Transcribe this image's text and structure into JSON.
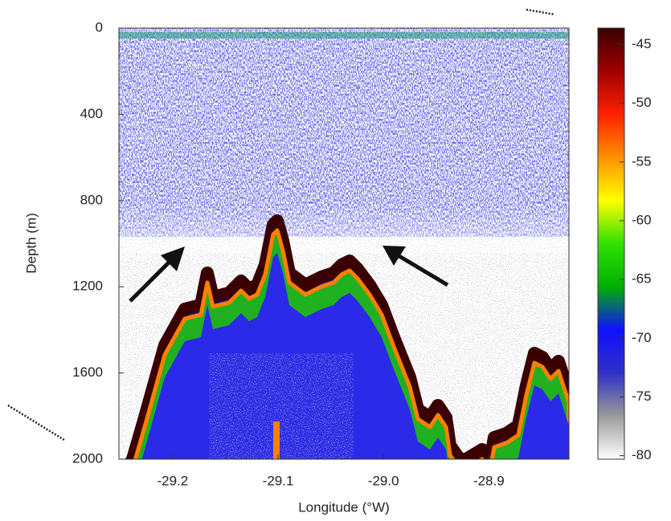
{
  "chart_data": {
    "type": "echogram",
    "xlabel": "Longitude (°W)",
    "ylabel": "Depth (m)",
    "xlim": [
      -29.251,
      -28.824
    ],
    "xticks": [
      -29.2,
      -29.1,
      {
        "value": -29,
        "label": "-29.0"
      },
      -28.9
    ],
    "ylim": [
      2000,
      0
    ],
    "yticks": [
      0,
      400,
      800,
      1200,
      1600,
      2000
    ],
    "colorbar": {
      "lim": [
        -80.3,
        -43.6
      ],
      "ticks": [
        -45,
        -50,
        -55,
        -60,
        -65,
        -70,
        -75,
        -80
      ],
      "colormap": [
        "#ffffff",
        "#9a9a9a",
        "#3030c8",
        "#1010ff",
        "#00b000",
        "#30e000",
        "#ffff00",
        "#ff9000",
        "#ff2000",
        "#a00000",
        "#3a0000"
      ]
    }
  }
}
